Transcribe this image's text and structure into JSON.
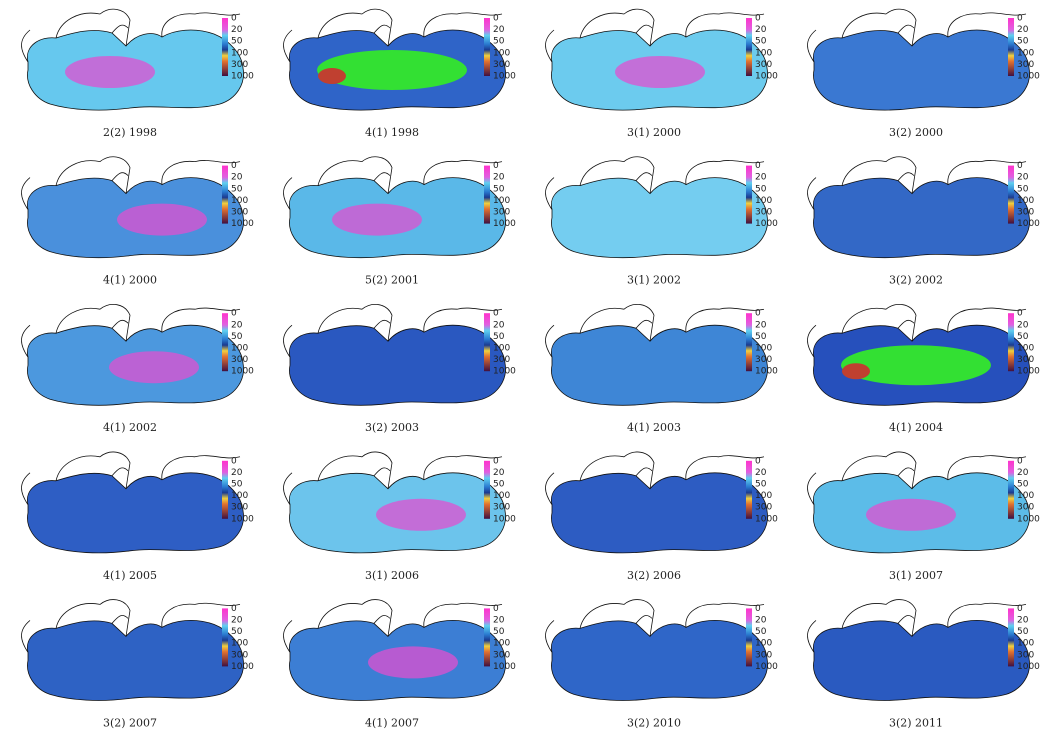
{
  "panels": [
    {
      "label": "2(2) 1998"
    },
    {
      "label": "4(1) 1998"
    },
    {
      "label": "3(1) 2000"
    },
    {
      "label": "3(2) 2000"
    },
    {
      "label": "4(1) 2000"
    },
    {
      "label": "5(2) 2001"
    },
    {
      "label": "3(1) 2002"
    },
    {
      "label": "3(2) 2002"
    },
    {
      "label": "4(1) 2002"
    },
    {
      "label": "3(2) 2003"
    },
    {
      "label": "4(1) 2003"
    },
    {
      "label": "4(1) 2004"
    },
    {
      "label": "4(1) 2005"
    },
    {
      "label": "3(1) 2006"
    },
    {
      "label": "3(2) 2006"
    },
    {
      "label": "3(1) 2007"
    },
    {
      "label": "3(2) 2007"
    },
    {
      "label": "4(1) 2007"
    },
    {
      "label": "3(2) 2010"
    },
    {
      "label": "3(2) 2011"
    }
  ],
  "colorbar": {
    "ticks": [
      "0",
      "20",
      "50",
      "100",
      "300",
      "1000"
    ]
  }
}
